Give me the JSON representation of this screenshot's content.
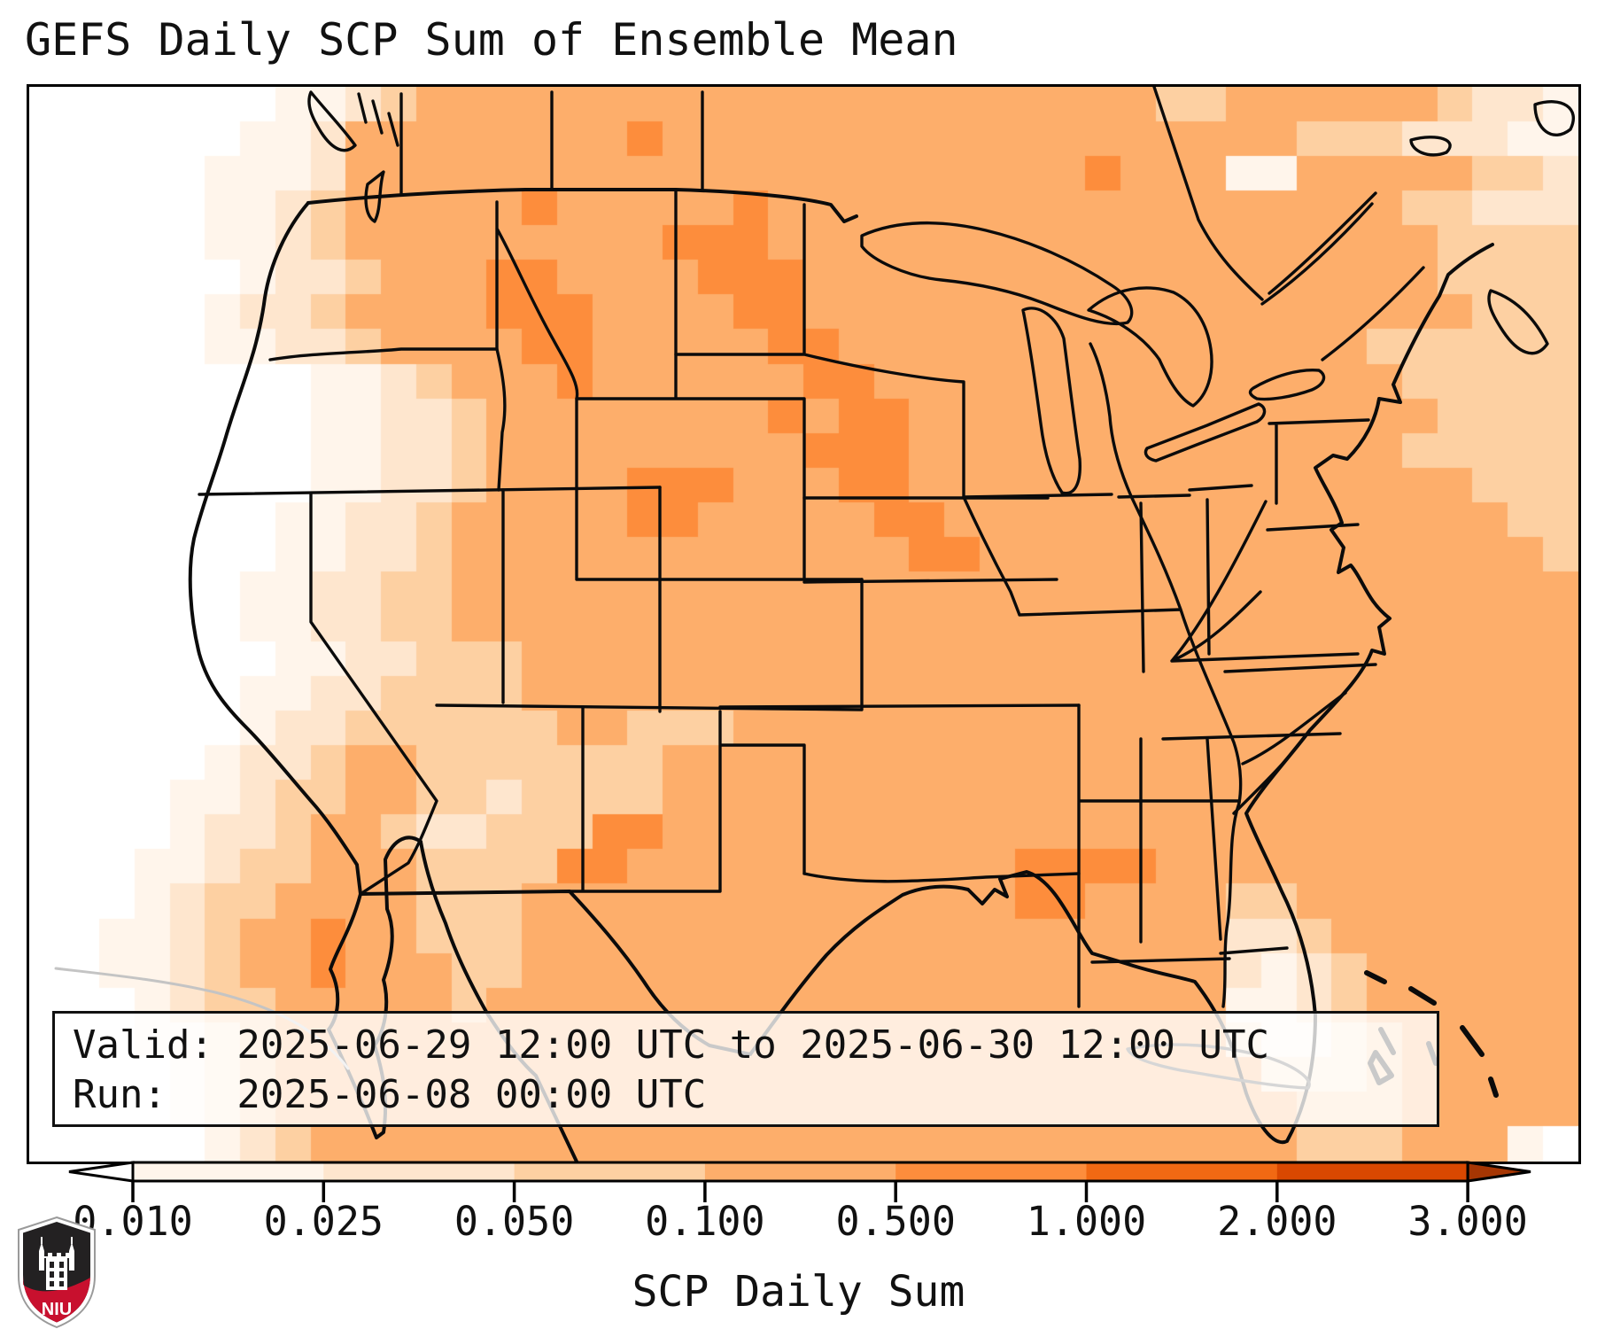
{
  "title": "GEFS Daily SCP Sum of Ensemble Mean",
  "info_box": {
    "line1": "Valid: 2025-06-29 12:00 UTC to 2025-06-30 12:00 UTC",
    "line2": "Run:   2025-06-08 00:00 UTC"
  },
  "colorbar": {
    "label": "SCP Daily Sum",
    "tick_labels": [
      "0.010",
      "0.025",
      "0.050",
      "0.100",
      "0.500",
      "1.000",
      "2.000",
      "3.000"
    ],
    "levels": [
      0.01,
      0.025,
      0.05,
      0.1,
      0.5,
      1.0,
      2.0,
      3.0
    ],
    "segment_colors": [
      "#fff5eb",
      "#fee6ce",
      "#fdd0a2",
      "#fdae6b",
      "#fd8d3c",
      "#f16913",
      "#d94801"
    ],
    "under_color": "#ffffff",
    "over_color": "#a63603",
    "outline_color": "#000000"
  },
  "logo": {
    "text": "NIU",
    "red": "#c8102e",
    "dark": "#232122",
    "tower_icon": "niu-castle-tower"
  },
  "map": {
    "border_color": "#000000",
    "state_line_color": "#0b0b0b",
    "faint_coast_color": "#c4c4c4",
    "palette": {
      "0": "#ffffff",
      "1": "#fff5eb",
      "2": "#fee6ce",
      "3": "#fdd0a2",
      "4": "#fdae6b",
      "5": "#fd8d3c",
      "6": "#f16913"
    },
    "grid_cols": 44,
    "grid_rows": [
      "00000001123444444444444444444444334444443221",
      "00000011244444444544444444444444444433322211",
      "00000111244444444444444444444454441144444332",
      "00000112344444544444544444444444444444433222",
      "00000112344444444455544444444444444444443333",
      "00000012234445544445554444444444444444443333",
      "00000122344445554444554444444444444444444333",
      "00000112234444554444455444444444444444333333",
      "00000000112344454444445544444444444444433333",
      "00000000112234444444454554444444444444443333",
      "00000000112234444444445554444444444444433333",
      "00000000112234444555444554444444444444444333",
      "00000001122344444554444455444444444444444433",
      "00000001122344444444444445544444444444444443",
      "00000011223344444444444444444444444444444444",
      "00000011223344444444444444444444444444444444",
      "00000001122333444444444444444444444444444444",
      "00000011223333444444444444444444444444444444",
      "00000012233333344333444444444444444444444444",
      "00000122344333333344444444444444444444444444",
      "00001123344332333344444444444444444444444444",
      "00001223443223335544444444444444444444444444",
      "00011233444333355444444444445555444444444444",
      "00012334444333444444444444445544443344444444",
      "00112344544333444444444444444444442234444444",
      "00112344544433444444444444444444442123444444",
      "00012334444434444444444444444444441123444444",
      "00011234444444444444444444444444442112344444",
      "00001234444444444444444444444444444222344444",
      "00001234444444444444444444444444444433344444",
      "00000123444444444444444444444444444433344410"
    ]
  }
}
